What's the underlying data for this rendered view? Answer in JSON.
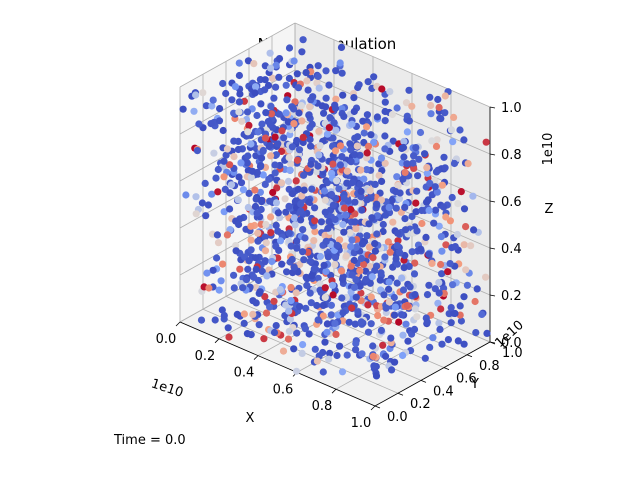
{
  "chart_data": {
    "type": "scatter",
    "projection": "3d",
    "title": "N-Body Simulation",
    "xlabel": "X",
    "ylabel": "Y",
    "zlabel": "Z",
    "xlim": [
      0,
      10000000000.0
    ],
    "ylim": [
      0,
      10000000000.0
    ],
    "zlim": [
      0,
      10000000000.0
    ],
    "xticks": [
      "0.0",
      "0.2",
      "0.4",
      "0.6",
      "0.8",
      "1.0"
    ],
    "yticks": [
      "0.0",
      "0.2",
      "0.4",
      "0.6",
      "0.8",
      "1.0"
    ],
    "zticks": [
      "0.0",
      "0.2",
      "0.4",
      "0.6",
      "0.8",
      "1.0"
    ],
    "x_offset_label": "1e10",
    "y_offset_label": "1e10",
    "z_offset_label": "1e10",
    "grid": true,
    "colormap": "coolwarm",
    "point_count_estimate": 1500,
    "point_distribution": "uniform random in unit cube",
    "colors": {
      "cool": "#3b4cc0",
      "warm": "#b40426",
      "neutral": "#dddcdc"
    }
  },
  "annotation": {
    "time_label": "Time = 0.0"
  }
}
